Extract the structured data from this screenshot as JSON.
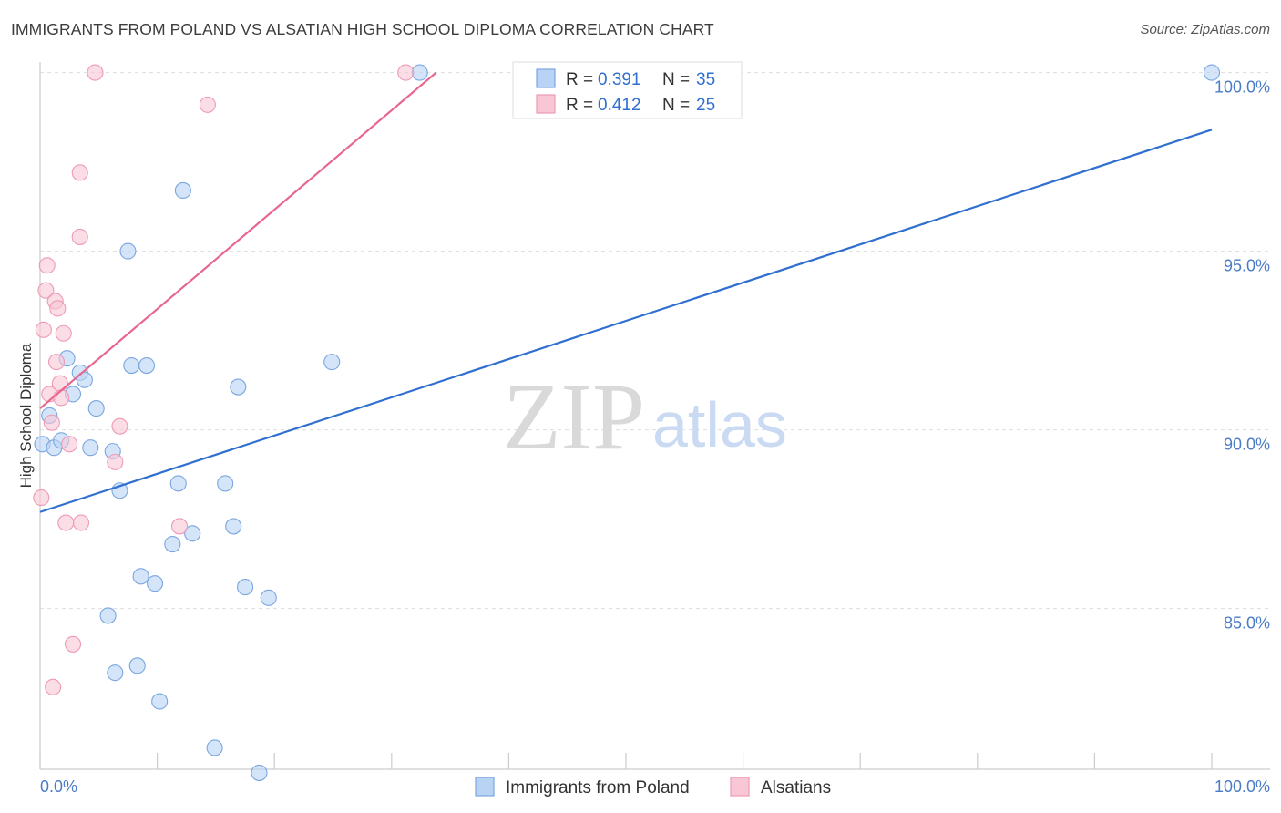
{
  "title": "IMMIGRANTS FROM POLAND VS ALSATIAN HIGH SCHOOL DIPLOMA CORRELATION CHART",
  "source": "Source: ZipAtlas.com",
  "watermark": {
    "zip": "ZIP",
    "atlas": "atlas"
  },
  "colors": {
    "blue_fill": "#b9d3f5",
    "blue_stroke": "#7aa6e0",
    "blue_line": "#2f6fd0",
    "pink_fill": "#f9c6d6",
    "pink_stroke": "#ee9ab5",
    "pink_line": "#e8678f",
    "value_text": "#2f6fd0",
    "grid": "#dddddd"
  },
  "legend": {
    "r_label": "R = ",
    "n_label": "N = ",
    "series": [
      {
        "r": "0.391",
        "n": "35"
      },
      {
        "r": "0.412",
        "n": "25"
      }
    ]
  },
  "chart_data": {
    "type": "scatter",
    "xlabel": "",
    "ylabel": "High School Diploma",
    "xlim": [
      0,
      100
    ],
    "ylim": [
      80.5,
      100.5
    ],
    "x_tick_labels": [
      "0.0%",
      "100.0%"
    ],
    "y_ticks": [
      85,
      90,
      95,
      100
    ],
    "y_tick_labels": [
      "85.0%",
      "90.0%",
      "95.0%",
      "100.0%"
    ],
    "series": [
      {
        "name": "Immigrants from Poland",
        "color": "blue",
        "r": 0.391,
        "n": 35,
        "trendline": {
          "x": [
            0,
            100
          ],
          "y": [
            87.7,
            98.4
          ]
        },
        "points": [
          [
            0.2,
            89.6
          ],
          [
            0.8,
            90.4
          ],
          [
            1.2,
            89.5
          ],
          [
            1.8,
            89.7
          ],
          [
            2.3,
            92.0
          ],
          [
            2.8,
            91.0
          ],
          [
            3.4,
            91.6
          ],
          [
            3.8,
            91.4
          ],
          [
            4.3,
            89.5
          ],
          [
            4.8,
            90.6
          ],
          [
            5.8,
            84.8
          ],
          [
            6.2,
            89.4
          ],
          [
            6.4,
            83.2
          ],
          [
            6.8,
            88.3
          ],
          [
            7.5,
            95.0
          ],
          [
            7.8,
            91.8
          ],
          [
            8.3,
            83.4
          ],
          [
            8.6,
            85.9
          ],
          [
            9.1,
            91.8
          ],
          [
            9.8,
            85.7
          ],
          [
            10.2,
            82.4
          ],
          [
            11.3,
            86.8
          ],
          [
            11.8,
            88.5
          ],
          [
            12.2,
            96.7
          ],
          [
            13.0,
            87.1
          ],
          [
            14.9,
            81.1
          ],
          [
            15.8,
            88.5
          ],
          [
            16.5,
            87.3
          ],
          [
            16.9,
            91.2
          ],
          [
            17.5,
            85.6
          ],
          [
            18.7,
            80.4
          ],
          [
            19.5,
            85.3
          ],
          [
            24.9,
            91.9
          ],
          [
            32.4,
            100.0
          ],
          [
            100.0,
            100.0
          ]
        ]
      },
      {
        "name": "Alsatians",
        "color": "pink",
        "r": 0.412,
        "n": 25,
        "trendline": {
          "x": [
            0,
            33.8
          ],
          "y": [
            90.6,
            100.0
          ]
        },
        "points": [
          [
            0.1,
            88.1
          ],
          [
            0.3,
            92.8
          ],
          [
            0.5,
            93.9
          ],
          [
            0.6,
            94.6
          ],
          [
            0.8,
            91.0
          ],
          [
            1.0,
            90.2
          ],
          [
            1.1,
            82.8
          ],
          [
            1.3,
            93.6
          ],
          [
            1.4,
            91.9
          ],
          [
            1.5,
            93.4
          ],
          [
            1.7,
            91.3
          ],
          [
            1.8,
            90.9
          ],
          [
            2.0,
            92.7
          ],
          [
            2.2,
            87.4
          ],
          [
            2.5,
            89.6
          ],
          [
            2.8,
            84.0
          ],
          [
            3.4,
            97.2
          ],
          [
            3.5,
            87.4
          ],
          [
            3.4,
            95.4
          ],
          [
            4.7,
            100.0
          ],
          [
            6.4,
            89.1
          ],
          [
            6.8,
            90.1
          ],
          [
            11.9,
            87.3
          ],
          [
            14.3,
            99.1
          ],
          [
            31.2,
            100.0
          ]
        ]
      }
    ]
  }
}
